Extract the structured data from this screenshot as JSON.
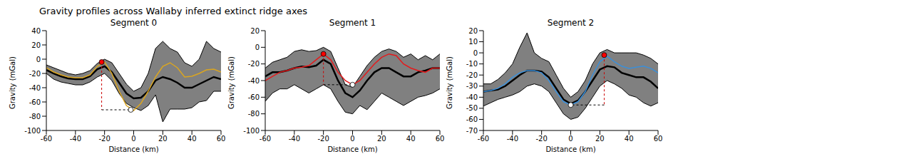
{
  "title": "Gravity profiles across Wallaby inferred extinct ridge axes",
  "chart_data": [
    {
      "type": "line",
      "title": "Segment 0",
      "x_label": "Distance (km)",
      "y_label": "Gravity (mGal)",
      "xlim": [
        -60,
        60
      ],
      "xticks": [
        -60,
        -40,
        -20,
        0,
        20,
        40,
        60
      ],
      "ylim": [
        -100,
        40
      ],
      "yticks": [
        -100,
        -80,
        -60,
        -40,
        -20,
        0,
        20,
        40
      ],
      "x": [
        -60,
        -55,
        -50,
        -45,
        -40,
        -35,
        -30,
        -25,
        -20,
        -15,
        -10,
        -5,
        0,
        5,
        10,
        15,
        20,
        25,
        30,
        35,
        40,
        45,
        50,
        55,
        60
      ],
      "band": {
        "color": "#808080",
        "lower": [
          -20,
          -28,
          -32,
          -34,
          -36,
          -36,
          -32,
          -25,
          -20,
          -30,
          -48,
          -62,
          -68,
          -72,
          -65,
          -50,
          -88,
          -70,
          -70,
          -70,
          -68,
          -60,
          -58,
          -45,
          -45
        ],
        "upper": [
          -8,
          -12,
          -16,
          -20,
          -22,
          -20,
          -16,
          -6,
          0,
          -5,
          -20,
          -35,
          -45,
          -40,
          -20,
          15,
          25,
          15,
          10,
          -5,
          -10,
          0,
          25,
          15,
          10
        ]
      },
      "series": [
        {
          "color": "#000000",
          "values": [
            -15,
            -20,
            -24,
            -27,
            -28,
            -28,
            -24,
            -14,
            -10,
            -18,
            -33,
            -48,
            -55,
            -54,
            -45,
            -30,
            -25,
            -28,
            -33,
            -40,
            -40,
            -35,
            -30,
            -25,
            -28
          ]
        },
        {
          "color": "#daa520",
          "values": [
            -12,
            -18,
            -22,
            -25,
            -26,
            -26,
            -22,
            -10,
            -4,
            -20,
            -45,
            -65,
            -72,
            -62,
            -45,
            -25,
            -10,
            -5,
            -12,
            -25,
            -24,
            -20,
            -15,
            -14,
            -18
          ]
        }
      ],
      "points": [
        {
          "x": -22,
          "y": -4,
          "color": "#ff0000"
        },
        {
          "x": -2,
          "y": -71,
          "color": "#ffffff"
        }
      ]
    },
    {
      "type": "line",
      "title": "Segment 1",
      "x_label": "Distance (km)",
      "y_label": "Gravity (mGal)",
      "xlim": [
        -60,
        60
      ],
      "xticks": [
        -60,
        -40,
        -20,
        0,
        20,
        40,
        60
      ],
      "ylim": [
        -100,
        20
      ],
      "yticks": [
        -100,
        -80,
        -60,
        -40,
        -20,
        0,
        20
      ],
      "x": [
        -60,
        -55,
        -50,
        -45,
        -40,
        -35,
        -30,
        -25,
        -20,
        -15,
        -10,
        -5,
        0,
        5,
        10,
        15,
        20,
        25,
        30,
        35,
        40,
        45,
        50,
        55,
        60
      ],
      "band": {
        "color": "#808080",
        "lower": [
          -65,
          -55,
          -50,
          -50,
          -45,
          -50,
          -55,
          -50,
          -45,
          -50,
          -65,
          -78,
          -80,
          -70,
          -75,
          -65,
          -55,
          -60,
          -65,
          -70,
          -65,
          -60,
          -58,
          -55,
          -50
        ],
        "upper": [
          -25,
          -18,
          -15,
          -12,
          -5,
          -3,
          -5,
          -4,
          0,
          -5,
          -25,
          -45,
          -48,
          -35,
          -22,
          -12,
          -5,
          -2,
          -5,
          -12,
          -8,
          -15,
          -10,
          -15,
          -8
        ]
      },
      "series": [
        {
          "color": "#000000",
          "values": [
            -35,
            -30,
            -30,
            -28,
            -25,
            -23,
            -24,
            -22,
            -15,
            -20,
            -40,
            -55,
            -60,
            -52,
            -40,
            -30,
            -25,
            -25,
            -30,
            -35,
            -35,
            -30,
            -28,
            -25,
            -25
          ]
        },
        {
          "color": "#e41a1c",
          "values": [
            -40,
            -35,
            -30,
            -28,
            -25,
            -24,
            -22,
            -15,
            -8,
            -15,
            -30,
            -40,
            -45,
            -40,
            -30,
            -20,
            -12,
            -8,
            -10,
            -20,
            -25,
            -28,
            -30,
            -25,
            -25
          ]
        }
      ],
      "points": [
        {
          "x": -20,
          "y": -8,
          "color": "#ff0000"
        },
        {
          "x": 0,
          "y": -45,
          "color": "#ffffff"
        }
      ]
    },
    {
      "type": "line",
      "title": "Segment 2",
      "x_label": "Distance (km)",
      "y_label": "Gravity (mGal)",
      "xlim": [
        -60,
        60
      ],
      "xticks": [
        -60,
        -40,
        -20,
        0,
        20,
        40,
        60
      ],
      "ylim": [
        -70,
        20
      ],
      "yticks": [
        -70,
        -60,
        -50,
        -40,
        -30,
        -20,
        -10,
        0,
        10,
        20
      ],
      "x": [
        -60,
        -55,
        -50,
        -45,
        -40,
        -35,
        -30,
        -25,
        -20,
        -15,
        -10,
        -5,
        0,
        5,
        10,
        15,
        20,
        25,
        30,
        35,
        40,
        45,
        50,
        55,
        60
      ],
      "band": {
        "color": "#808080",
        "lower": [
          -48,
          -45,
          -42,
          -40,
          -38,
          -35,
          -30,
          -28,
          -30,
          -35,
          -45,
          -55,
          -60,
          -58,
          -50,
          -40,
          -30,
          -25,
          -28,
          -32,
          -38,
          -40,
          -45,
          -48,
          -45
        ],
        "upper": [
          -28,
          -28,
          -24,
          -18,
          -10,
          5,
          18,
          0,
          -5,
          -8,
          -20,
          -32,
          -40,
          -35,
          -25,
          -10,
          0,
          3,
          0,
          0,
          0,
          0,
          -2,
          -5,
          -10
        ]
      },
      "series": [
        {
          "color": "#000000",
          "values": [
            -35,
            -34,
            -33,
            -30,
            -25,
            -20,
            -16,
            -16,
            -17,
            -22,
            -32,
            -42,
            -46,
            -43,
            -35,
            -25,
            -15,
            -12,
            -13,
            -18,
            -20,
            -22,
            -22,
            -26,
            -32
          ]
        },
        {
          "color": "#3a8fd9",
          "values": [
            -35,
            -34,
            -32,
            -28,
            -22,
            -18,
            -16,
            -16,
            -18,
            -25,
            -35,
            -44,
            -47,
            -44,
            -35,
            -20,
            -8,
            -3,
            -8,
            -12,
            -14,
            -13,
            -12,
            -14,
            -18
          ]
        }
      ],
      "points": [
        {
          "x": 23,
          "y": -2,
          "color": "#ff0000"
        },
        {
          "x": 0,
          "y": -47,
          "color": "#ffffff"
        }
      ]
    }
  ]
}
